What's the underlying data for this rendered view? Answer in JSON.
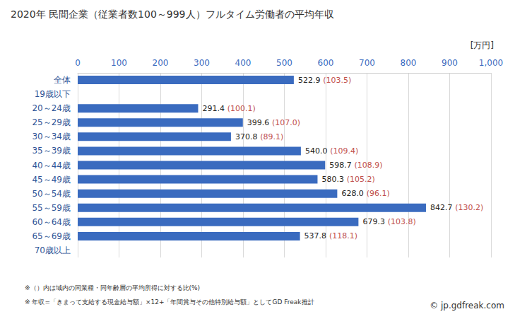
{
  "chart_data": {
    "type": "bar",
    "orientation": "horizontal",
    "title": "2020年 民間企業（従業者数100～999人）フルタイム労働者の平均年収",
    "xlabel": "[万円]",
    "categories": [
      "全体",
      "19歳以下",
      "20～24歳",
      "25～29歳",
      "30～34歳",
      "35～39歳",
      "40～44歳",
      "45～49歳",
      "50～54歳",
      "55～59歳",
      "60～64歳",
      "65～69歳",
      "70歳以上"
    ],
    "values": [
      522.9,
      null,
      291.4,
      399.6,
      370.8,
      540.0,
      598.7,
      580.3,
      628.0,
      842.7,
      679.3,
      537.8,
      null
    ],
    "value_labels": [
      "522.9",
      null,
      "291.4",
      "399.6",
      "370.8",
      "540.0",
      "598.7",
      "580.3",
      "628.0",
      "842.7",
      "679.3",
      "537.8",
      null
    ],
    "ratio_labels": [
      "(103.5)",
      null,
      "(100.1)",
      "(107.0)",
      "(89.1)",
      "(109.4)",
      "(108.9)",
      "(105.2)",
      "(96.1)",
      "(130.2)",
      "(103.8)",
      "(118.1)",
      null
    ],
    "color": "#3a6bbf",
    "xlim": [
      0,
      1000
    ],
    "xticks": [
      0,
      100,
      200,
      300,
      400,
      500,
      600,
      700,
      800,
      900,
      1000
    ],
    "grid": true,
    "data_labels": true,
    "notes": [
      "※（）内は域内の同業種・同年齢層の平均所得に対する比(%)",
      "※ 年収=「きまって支給する現金給与額」×12+「年間賞与その他特別給与額」としてGD Freak推計"
    ],
    "credit": "© jp.gdfreak.com"
  }
}
